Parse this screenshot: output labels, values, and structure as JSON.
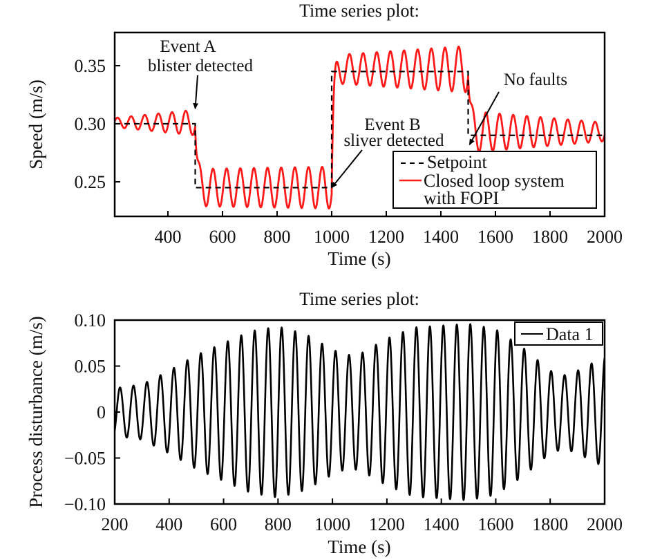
{
  "chart_data": [
    {
      "type": "line",
      "title": "Time series plot:",
      "xlabel": "Time (s)",
      "ylabel": "Speed (m/s)",
      "xlim": [
        205,
        2000
      ],
      "ylim": [
        0.2202,
        0.3786
      ],
      "xticks": [
        400,
        600,
        800,
        1000,
        1200,
        1400,
        1600,
        1800,
        2000
      ],
      "xtick_labels": [
        "400",
        "600",
        "800",
        "1000",
        "1200",
        "1400",
        "1600",
        "1800",
        "2000"
      ],
      "yticks": [
        0.25,
        0.3,
        0.35
      ],
      "ytick_labels": [
        "0.25",
        "0.30",
        "0.35"
      ],
      "grid": false,
      "legend": {
        "placement": "bottom-right",
        "entries": [
          {
            "label": "Setpoint",
            "style": "dashed",
            "color": "#000000"
          },
          {
            "label_lines": [
              "Closed loop system",
              "with FOPI"
            ],
            "style": "solid",
            "color": "#ff1a1a"
          }
        ]
      },
      "series": [
        {
          "name": "Setpoint",
          "color": "#000000",
          "style": "dashed",
          "steps": [
            {
              "t_start": 205,
              "t_end": 500,
              "value": 0.3
            },
            {
              "t_start": 500,
              "t_end": 1000,
              "value": 0.245
            },
            {
              "t_start": 1000,
              "t_end": 1500,
              "value": 0.345
            },
            {
              "t_start": 1500,
              "t_end": 2000,
              "value": 0.29
            }
          ]
        },
        {
          "name": "Closed loop system with FOPI",
          "color": "#ff1a1a",
          "style": "solid",
          "period_s": 50,
          "segments": [
            {
              "t_start": 205,
              "t_end": 500,
              "center": 0.301,
              "amplitude_start": 0.004,
              "amplitude_end": 0.011
            },
            {
              "t_start": 500,
              "t_end": 1000,
              "center": 0.245,
              "amplitude_start": 0.016,
              "amplitude_end": 0.018
            },
            {
              "t_start": 1000,
              "t_end": 1500,
              "center": 0.347,
              "amplitude_start": 0.012,
              "amplitude_end": 0.02
            },
            {
              "t_start": 1500,
              "t_end": 2000,
              "center": 0.293,
              "amplitude_start": 0.018,
              "amplitude_end": 0.008
            }
          ]
        }
      ],
      "annotations": [
        {
          "text_lines": [
            "Event A",
            "blister detected"
          ],
          "arrow_to": {
            "x": 500,
            "y": 0.313
          }
        },
        {
          "text_lines": [
            "Event B",
            "sliver detected"
          ],
          "arrow_to": {
            "x": 1000,
            "y": 0.245
          }
        },
        {
          "text_lines": [
            "No faults"
          ],
          "arrow_to": {
            "x": 1505,
            "y": 0.282
          }
        }
      ]
    },
    {
      "type": "line",
      "title": "Time series plot:",
      "xlabel": "Time (s)",
      "ylabel": "Process disturbance (m/s)",
      "xlim": [
        200,
        2000
      ],
      "ylim": [
        -0.1,
        0.1
      ],
      "xticks": [
        200,
        400,
        600,
        800,
        1000,
        1200,
        1400,
        1600,
        1800,
        2000
      ],
      "xtick_labels": [
        "200",
        "400",
        "600",
        "800",
        "1000",
        "1200",
        "1400",
        "1600",
        "1800",
        "2000"
      ],
      "yticks": [
        -0.1,
        -0.05,
        0,
        0.05,
        0.1
      ],
      "ytick_labels": [
        "−0.10",
        "−0.05",
        "0",
        "0.05",
        "0.10"
      ],
      "grid": false,
      "legend": {
        "placement": "top-right",
        "entries": [
          {
            "label": "Data 1",
            "style": "solid",
            "color": "#000000"
          }
        ]
      },
      "series": [
        {
          "name": "Data 1",
          "color": "#000000",
          "style": "solid",
          "period_s": 49.5,
          "phase_start_s": 200,
          "envelope": {
            "t": [
              200,
              300,
              400,
              500,
              600,
              700,
              800,
              900,
              1000,
              1050,
              1100,
              1200,
              1300,
              1400,
              1500,
              1600,
              1700,
              1800,
              1850,
              1900,
              2000
            ],
            "amplitude": [
              0.026,
              0.03,
              0.045,
              0.062,
              0.075,
              0.088,
              0.093,
              0.085,
              0.068,
              0.062,
              0.063,
              0.08,
              0.092,
              0.094,
              0.096,
              0.09,
              0.07,
              0.045,
              0.04,
              0.045,
              0.06
            ]
          }
        }
      ]
    }
  ]
}
